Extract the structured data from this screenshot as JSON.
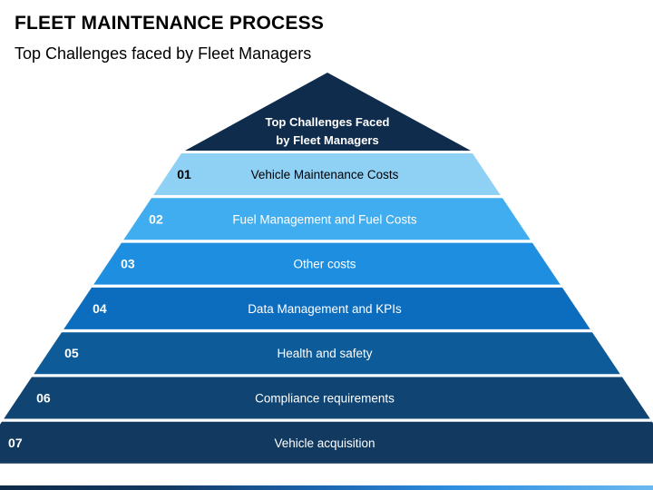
{
  "header": {
    "title": "FLEET MAINTENANCE PROCESS",
    "subtitle": "Top Challenges faced by Fleet Managers"
  },
  "pyramid": {
    "apex_lines": [
      "Top Challenges Faced",
      "by Fleet Managers"
    ],
    "apex_color": "#0f2c4c",
    "tiers": [
      {
        "number": "01",
        "label": "Vehicle Maintenance Costs",
        "fill": "#8fd0f5",
        "text_color": "#000000"
      },
      {
        "number": "02",
        "label": "Fuel Management and Fuel Costs",
        "fill": "#3fadf0",
        "text_color": "#ffffff"
      },
      {
        "number": "03",
        "label": "Other costs",
        "fill": "#1e8fe0",
        "text_color": "#ffffff"
      },
      {
        "number": "04",
        "label": "Data Management and KPIs",
        "fill": "#0c6cbe",
        "text_color": "#ffffff"
      },
      {
        "number": "05",
        "label": "Health and safety",
        "fill": "#0d5b99",
        "text_color": "#ffffff"
      },
      {
        "number": "06",
        "label": "Compliance requirements",
        "fill": "#104472",
        "text_color": "#ffffff"
      },
      {
        "number": "07",
        "label": "Vehicle acquisition",
        "fill": "#123a60",
        "text_color": "#ffffff"
      }
    ]
  }
}
